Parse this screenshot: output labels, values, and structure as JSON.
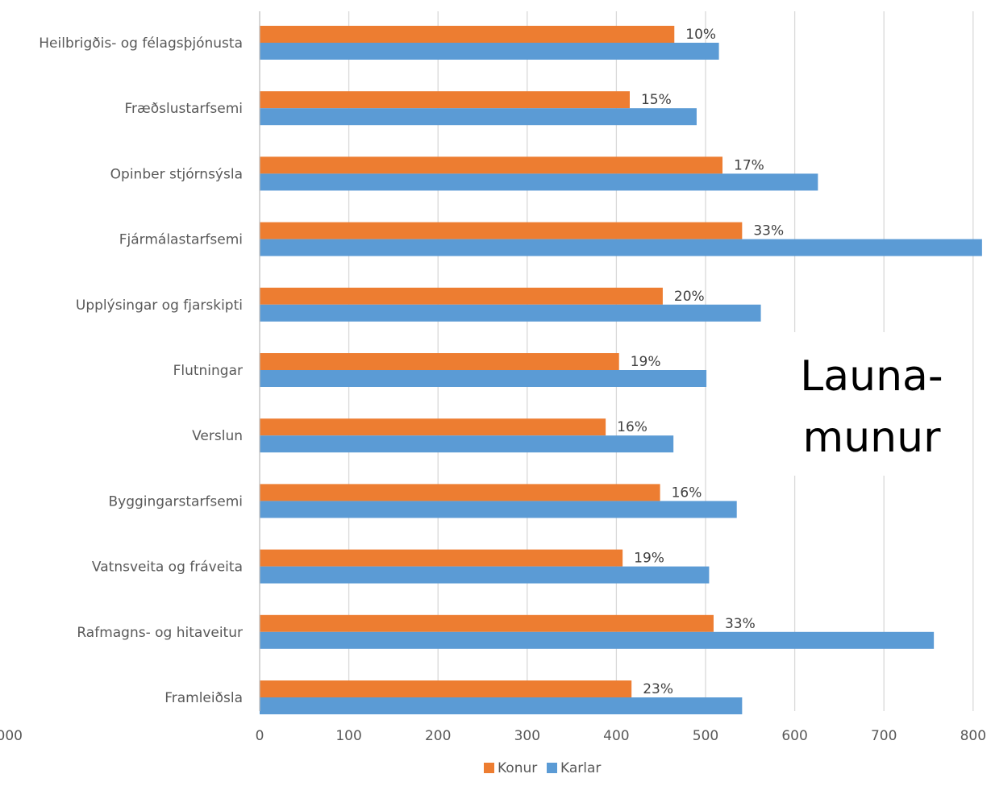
{
  "chart_data": {
    "type": "bar",
    "orientation": "horizontal",
    "title": "",
    "xlabel": "",
    "ylabel": "",
    "categories": [
      "Heilbrigðis- og félagsþjónusta",
      "Fræðslustarfsemi",
      "Opinber stjórnsýsla",
      "Fjármálastarfsemi",
      "Upplýsingar og fjarskipti",
      "Flutningar",
      "Verslun",
      "Byggingarstarfsemi",
      "Vatnsveita og fráveita",
      "Rafmagns- og hitaveitur",
      "Framleiðsla"
    ],
    "series": [
      {
        "name": "Konur",
        "color": "#ED7D31",
        "values": [
          465,
          415,
          519,
          541,
          452,
          403,
          388,
          449,
          407,
          509,
          417
        ]
      },
      {
        "name": "Karlar",
        "color": "#5B9BD5",
        "values": [
          515,
          490,
          626,
          810,
          562,
          501,
          464,
          535,
          504,
          756,
          541
        ]
      }
    ],
    "data_labels": [
      "10%",
      "15%",
      "17%",
      "33%",
      "20%",
      "19%",
      "16%",
      "16%",
      "19%",
      "33%",
      "23%"
    ],
    "xlim": [
      0,
      800
    ],
    "xticks": [
      "0",
      "100",
      "200",
      "300",
      "400",
      "500",
      "600",
      "700",
      "800"
    ],
    "clipped_tick_label": "000",
    "grid": "vertical",
    "legend_position": "bottom",
    "annotation": {
      "lines": [
        "Launa-",
        "munur"
      ]
    }
  }
}
